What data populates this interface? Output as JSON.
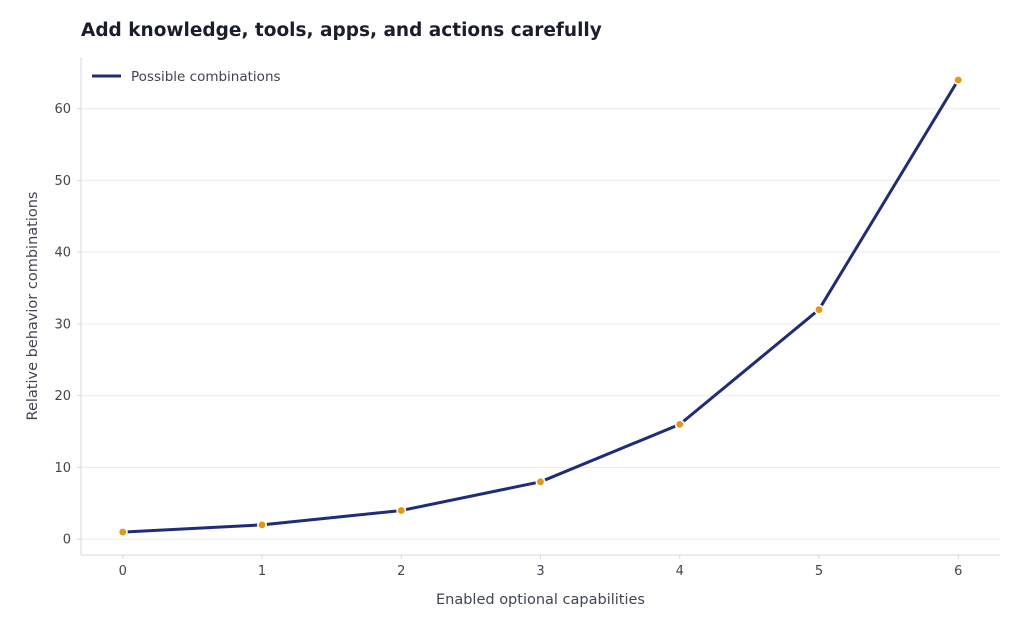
{
  "chart_data": {
    "type": "line",
    "title": "Add knowledge, tools, apps, and actions carefully",
    "xlabel": "Enabled optional capabilities",
    "ylabel": "Relative behavior combinations",
    "x": [
      0,
      1,
      2,
      3,
      4,
      5,
      6
    ],
    "series": [
      {
        "name": "Possible combinations",
        "values": [
          1,
          2,
          4,
          8,
          16,
          32,
          64
        ]
      }
    ],
    "xlim": [
      -0.3,
      6.3
    ],
    "ylim": [
      -2.2,
      67.2
    ],
    "xticks": [
      "0",
      "1",
      "2",
      "3",
      "4",
      "5",
      "6"
    ],
    "yticks": [
      "0",
      "10",
      "20",
      "30",
      "40",
      "50",
      "60"
    ],
    "grid": "horizontal",
    "legend_position": "top-left",
    "colors": {
      "line": "#1f2c7a",
      "marker": "#e8960e",
      "grid": "#ececec",
      "axis": "#d9d9d9"
    }
  }
}
